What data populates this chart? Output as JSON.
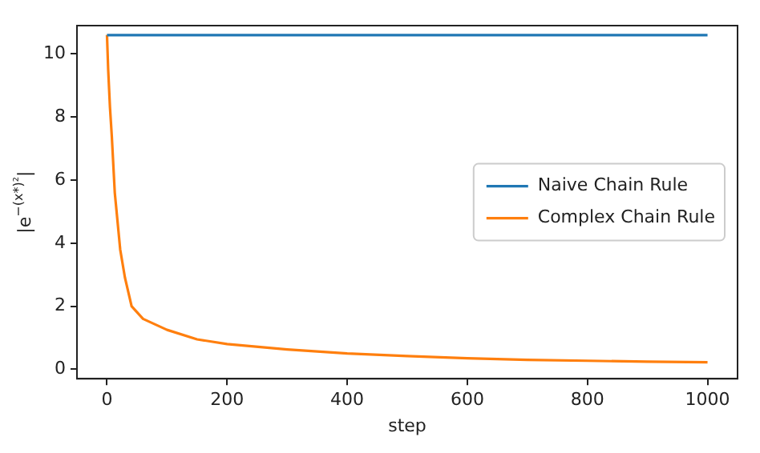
{
  "chart_data": {
    "type": "line",
    "xlabel": "step",
    "ylabel": "|e$^{−(x*)²}$|",
    "xlim": [
      -50,
      1050
    ],
    "ylim": [
      -0.3,
      10.9
    ],
    "xticks": [
      0,
      200,
      400,
      600,
      800,
      1000
    ],
    "yticks": [
      0,
      2,
      4,
      6,
      8,
      10
    ],
    "legend": "right",
    "grid": false,
    "marker": "none",
    "line_style": "solid",
    "series": [
      {
        "name": "Naive Chain Rule",
        "color": "#1f77b4",
        "x": [
          0,
          1000
        ],
        "values": [
          10.6,
          10.6
        ]
      },
      {
        "name": "Complex Chain Rule",
        "color": "#ff7f0e",
        "x": [
          0,
          2,
          5,
          8,
          13,
          22,
          30,
          41,
          60,
          100,
          150,
          200,
          300,
          400,
          500,
          600,
          700,
          800,
          900,
          1000
        ],
        "values": [
          10.6,
          9.5,
          8.3,
          7.4,
          5.6,
          3.8,
          2.9,
          2.0,
          1.6,
          1.25,
          0.95,
          0.8,
          0.63,
          0.5,
          0.42,
          0.35,
          0.3,
          0.27,
          0.24,
          0.22
        ]
      }
    ]
  }
}
